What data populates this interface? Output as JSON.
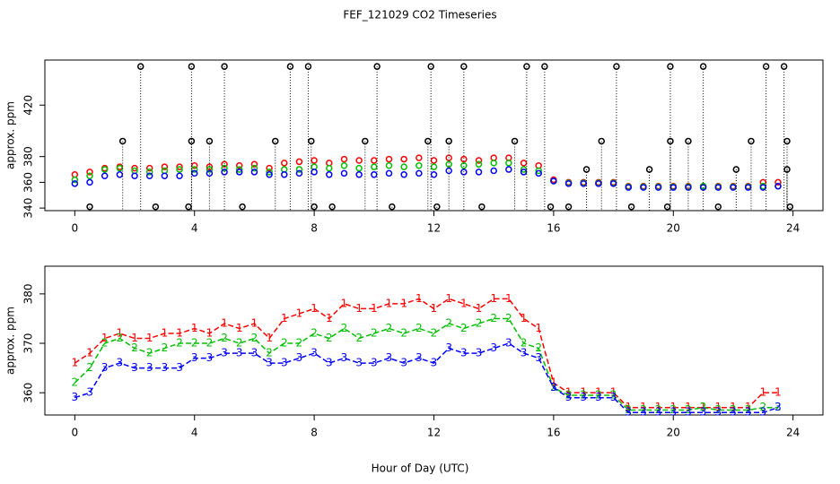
{
  "chart_data": [
    {
      "type": "scatter",
      "title": "FEF_121029  CO2 Timeseries",
      "y_label": "approx. ppm",
      "xlim": [
        -1,
        25
      ],
      "xticks": [
        0,
        4,
        8,
        12,
        16,
        20,
        24
      ],
      "ylim": [
        338,
        455
      ],
      "yticks": [
        340,
        360,
        380,
        420
      ],
      "x": [
        0,
        0.5,
        1,
        1.5,
        2,
        2.5,
        3,
        3.5,
        4,
        4.5,
        5,
        5.5,
        6,
        6.5,
        7,
        7.5,
        8,
        8.5,
        9,
        9.5,
        10,
        10.5,
        11,
        11.5,
        12,
        12.5,
        13,
        13.5,
        14,
        14.5,
        15,
        15.5,
        16,
        16.5,
        17,
        17.5,
        18,
        18.5,
        19,
        19.5,
        20,
        20.5,
        21,
        21.5,
        22,
        22.5,
        23,
        23.5
      ],
      "series": [
        {
          "color": "#ff0000",
          "values": [
            366,
            368,
            371,
            372,
            371,
            371,
            372,
            372,
            373,
            372,
            374,
            373,
            374,
            371,
            375,
            376,
            377,
            375,
            378,
            377,
            377,
            378,
            378,
            379,
            377,
            379,
            378,
            377,
            379,
            379,
            375,
            373,
            362,
            360,
            360,
            360,
            360,
            357,
            357,
            357,
            357,
            357,
            357,
            357,
            357,
            357,
            360,
            360
          ]
        },
        {
          "color": "#00c000",
          "values": [
            362,
            365,
            370,
            371,
            369,
            368,
            369,
            370,
            370,
            370,
            371,
            370,
            371,
            368,
            370,
            370,
            372,
            371,
            373,
            371,
            372,
            373,
            372,
            373,
            372,
            374,
            373,
            374,
            375,
            375,
            370,
            369,
            361,
            359.5,
            359.5,
            359.5,
            359.5,
            356.5,
            356.5,
            356.5,
            356.5,
            356.5,
            357,
            356.5,
            356.5,
            356.5,
            357,
            357
          ]
        },
        {
          "color": "#0000ff",
          "values": [
            359,
            360,
            365,
            366,
            365,
            365,
            365,
            365,
            367,
            367,
            368,
            368,
            368,
            366,
            366,
            367,
            368,
            366,
            367,
            366,
            366,
            367,
            366,
            367,
            366,
            369,
            368,
            368,
            369,
            370,
            368,
            367,
            361,
            359,
            359,
            359,
            359,
            356,
            356,
            356,
            356,
            356,
            356,
            356,
            356,
            356,
            356,
            357
          ]
        },
        {
          "color": "#000000",
          "stems": true,
          "x": [
            0.5,
            1.6,
            2.2,
            2.7,
            3.8,
            3.9,
            3.9,
            4.5,
            5.0,
            5.6,
            6.7,
            7.2,
            7.8,
            7.9,
            8.0,
            8.6,
            9.7,
            10.1,
            10.6,
            11.8,
            11.9,
            12.1,
            12.5,
            13.0,
            13.6,
            14.7,
            15.1,
            15.7,
            15.9,
            16.5,
            17.1,
            17.6,
            18.1,
            18.6,
            19.2,
            19.8,
            19.9,
            19.9,
            20.5,
            21.0,
            21.5,
            22.1,
            22.6,
            23.1,
            23.7,
            23.8,
            23.8,
            23.9
          ],
          "values": [
            341,
            392,
            450,
            341,
            341,
            392,
            450,
            392,
            450,
            341,
            392,
            450,
            450,
            392,
            341,
            341,
            392,
            450,
            341,
            392,
            450,
            341,
            392,
            450,
            341,
            392,
            450,
            450,
            341,
            341,
            370,
            392,
            450,
            341,
            370,
            341,
            392,
            450,
            392,
            450,
            341,
            370,
            392,
            450,
            450,
            392,
            370,
            341
          ]
        }
      ]
    },
    {
      "type": "line",
      "y_label": "approx. ppm",
      "x_label": "Hour of Day (UTC)",
      "xlim": [
        -1,
        25
      ],
      "xticks": [
        0,
        4,
        8,
        12,
        16,
        20,
        24
      ],
      "ylim": [
        355.5,
        385.6
      ],
      "yticks": [
        360,
        370,
        380
      ],
      "x": [
        0,
        0.5,
        1,
        1.5,
        2,
        2.5,
        3,
        3.5,
        4,
        4.5,
        5,
        5.5,
        6,
        6.5,
        7,
        7.5,
        8,
        8.5,
        9,
        9.5,
        10,
        10.5,
        11,
        11.5,
        12,
        12.5,
        13,
        13.5,
        14,
        14.5,
        15,
        15.5,
        16,
        16.5,
        17,
        17.5,
        18,
        18.5,
        19,
        19.5,
        20,
        20.5,
        21,
        21.5,
        22,
        22.5,
        23,
        23.5
      ],
      "series": [
        {
          "name": "1",
          "color": "#ff0000",
          "values": [
            366,
            368,
            371,
            372,
            371,
            371,
            372,
            372,
            373,
            372,
            374,
            373,
            374,
            371,
            375,
            376,
            377,
            375,
            378,
            377,
            377,
            378,
            378,
            379,
            377,
            379,
            378,
            377,
            379,
            379,
            375,
            373,
            362,
            360,
            360,
            360,
            360,
            357,
            357,
            357,
            357,
            357,
            357,
            357,
            357,
            357,
            360,
            360
          ]
        },
        {
          "name": "2",
          "color": "#00c000",
          "values": [
            362,
            365,
            370,
            371,
            369,
            368,
            369,
            370,
            370,
            370,
            371,
            370,
            371,
            368,
            370,
            370,
            372,
            371,
            373,
            371,
            372,
            373,
            372,
            373,
            372,
            374,
            373,
            374,
            375,
            375,
            370,
            369,
            361,
            359.5,
            359.5,
            359.5,
            359.5,
            356.5,
            356.5,
            356.5,
            356.5,
            356.5,
            357,
            356.5,
            356.5,
            356.5,
            357,
            357
          ]
        },
        {
          "name": "3",
          "color": "#0000ff",
          "values": [
            359,
            360,
            365,
            366,
            365,
            365,
            365,
            365,
            367,
            367,
            368,
            368,
            368,
            366,
            366,
            367,
            368,
            366,
            367,
            366,
            366,
            367,
            366,
            367,
            366,
            369,
            368,
            368,
            369,
            370,
            368,
            367,
            361,
            359,
            359,
            359,
            359,
            356,
            356,
            356,
            356,
            356,
            356,
            356,
            356,
            356,
            356,
            357
          ]
        }
      ]
    }
  ]
}
